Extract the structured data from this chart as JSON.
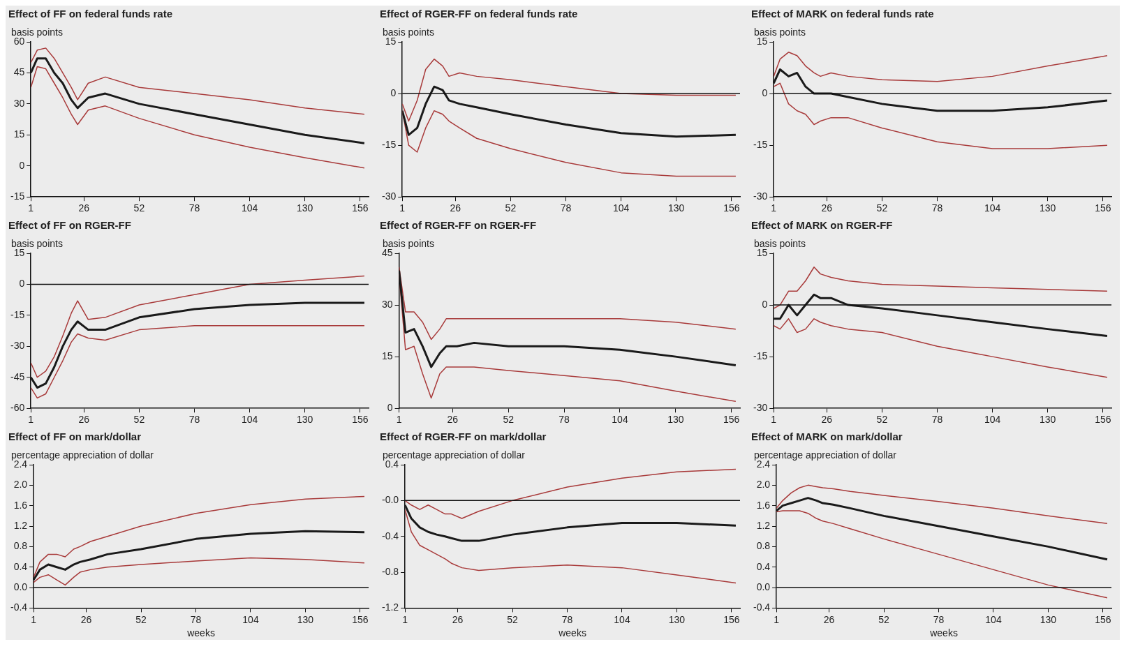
{
  "chart_data": [
    {
      "type": "line",
      "title": "Effect of FF on federal funds rate",
      "ylabel": "basis points",
      "marker": "none",
      "x": [
        1,
        4,
        8,
        12,
        16,
        20,
        23,
        28,
        36,
        52,
        78,
        104,
        130,
        158
      ],
      "xlim": [
        1,
        160
      ],
      "xticks": [
        1,
        26,
        52,
        78,
        104,
        130,
        156
      ],
      "ylim": [
        -15,
        60
      ],
      "yticks": [
        -15,
        0,
        15,
        30,
        45,
        60
      ],
      "series": [
        {
          "color": "#1a1a1a",
          "values": [
            45,
            52,
            52,
            45,
            40,
            32,
            28,
            33,
            35,
            30,
            25,
            20,
            15,
            11
          ]
        },
        {
          "color": "#a83a3a",
          "values": [
            50,
            56,
            57,
            52,
            45,
            38,
            32,
            40,
            43,
            38,
            35,
            32,
            28,
            25
          ]
        },
        {
          "color": "#a83a3a",
          "values": [
            38,
            48,
            47,
            40,
            33,
            25,
            20,
            27,
            29,
            23,
            15,
            9,
            4,
            -1
          ]
        }
      ]
    },
    {
      "type": "line",
      "title": "Effect of RGER-FF on federal funds rate",
      "ylabel": "basis points",
      "marker": "none",
      "x": [
        1,
        4,
        8,
        12,
        16,
        20,
        23,
        28,
        36,
        52,
        78,
        104,
        130,
        158
      ],
      "xlim": [
        1,
        160
      ],
      "xticks": [
        1,
        26,
        52,
        78,
        104,
        130,
        156
      ],
      "ylim": [
        -30,
        15
      ],
      "yticks": [
        -30,
        -15,
        0,
        15
      ],
      "ref_lines": [
        {
          "axis": "y",
          "value": 0
        }
      ],
      "series": [
        {
          "color": "#1a1a1a",
          "values": [
            -5,
            -12,
            -10,
            -3,
            2,
            1,
            -2,
            -3,
            -4,
            -6,
            -9,
            -11.5,
            -12.5,
            -12
          ]
        },
        {
          "color": "#a83a3a",
          "values": [
            -3,
            -8,
            -2,
            7,
            10,
            8,
            5,
            6,
            5,
            4,
            2,
            0,
            -0.5,
            -0.5
          ]
        },
        {
          "color": "#a83a3a",
          "values": [
            -5,
            -15,
            -17,
            -10,
            -5,
            -6,
            -8,
            -10,
            -13,
            -16,
            -20,
            -23,
            -24,
            -24
          ]
        }
      ]
    },
    {
      "type": "line",
      "title": "Effect of MARK on federal funds rate",
      "ylabel": "basis points",
      "marker": "none",
      "x": [
        1,
        4,
        8,
        12,
        16,
        20,
        23,
        28,
        36,
        52,
        78,
        104,
        130,
        158
      ],
      "xlim": [
        1,
        160
      ],
      "xticks": [
        1,
        26,
        52,
        78,
        104,
        130,
        156
      ],
      "ylim": [
        -30,
        15
      ],
      "yticks": [
        -30,
        -15,
        0,
        15
      ],
      "ref_lines": [
        {
          "axis": "y",
          "value": 0
        }
      ],
      "series": [
        {
          "color": "#1a1a1a",
          "values": [
            3,
            7,
            5,
            6,
            2,
            0,
            0,
            0,
            -1,
            -3,
            -5,
            -5,
            -4,
            -2
          ]
        },
        {
          "color": "#a83a3a",
          "values": [
            5,
            10,
            12,
            11,
            8,
            6,
            5,
            6,
            5,
            4,
            3.5,
            5,
            8,
            11
          ]
        },
        {
          "color": "#a83a3a",
          "values": [
            2,
            3,
            -3,
            -5,
            -6,
            -9,
            -8,
            -7,
            -7,
            -10,
            -14,
            -16,
            -16,
            -15
          ]
        }
      ]
    },
    {
      "type": "line",
      "title": "Effect of FF on RGER-FF",
      "ylabel": "basis points",
      "marker": "none",
      "x": [
        1,
        4,
        8,
        12,
        16,
        20,
        23,
        28,
        36,
        52,
        78,
        104,
        130,
        158
      ],
      "xlim": [
        1,
        160
      ],
      "xticks": [
        1,
        26,
        52,
        78,
        104,
        130,
        156
      ],
      "ylim": [
        -60,
        15
      ],
      "yticks": [
        -60,
        -45,
        -30,
        -15,
        0,
        15
      ],
      "ref_lines": [
        {
          "axis": "y",
          "value": 0
        }
      ],
      "series": [
        {
          "color": "#1a1a1a",
          "values": [
            -45,
            -50,
            -48,
            -40,
            -30,
            -22,
            -18,
            -22,
            -22,
            -16,
            -12,
            -10,
            -9,
            -9
          ]
        },
        {
          "color": "#a83a3a",
          "values": [
            -38,
            -45,
            -42,
            -35,
            -25,
            -14,
            -8,
            -17,
            -16,
            -10,
            -5,
            0,
            2,
            4
          ]
        },
        {
          "color": "#a83a3a",
          "values": [
            -50,
            -55,
            -53,
            -45,
            -37,
            -28,
            -24,
            -26,
            -27,
            -22,
            -20,
            -20,
            -20,
            -20
          ]
        }
      ]
    },
    {
      "type": "line",
      "title": "Effect of RGER-FF on RGER-FF",
      "ylabel": "basis points",
      "marker": "none",
      "x": [
        1,
        4,
        8,
        12,
        16,
        20,
        23,
        28,
        36,
        52,
        78,
        104,
        130,
        158
      ],
      "xlim": [
        1,
        160
      ],
      "xticks": [
        1,
        26,
        52,
        78,
        104,
        130,
        156
      ],
      "ylim": [
        0,
        45
      ],
      "yticks": [
        0,
        15,
        30,
        45
      ],
      "series": [
        {
          "color": "#1a1a1a",
          "values": [
            40,
            22,
            23,
            18,
            12,
            16,
            18,
            18,
            19,
            18,
            18,
            17,
            15,
            12.5
          ]
        },
        {
          "color": "#a83a3a",
          "values": [
            41,
            28,
            28,
            25,
            20,
            23,
            26,
            26,
            26,
            26,
            26,
            26,
            25,
            23
          ]
        },
        {
          "color": "#a83a3a",
          "values": [
            39,
            17,
            18,
            10,
            3,
            10,
            12,
            12,
            12,
            11,
            9.5,
            8,
            5,
            2
          ]
        }
      ]
    },
    {
      "type": "line",
      "title": "Effect of MARK on RGER-FF",
      "ylabel": "basis points",
      "marker": "none",
      "x": [
        1,
        4,
        8,
        12,
        16,
        20,
        23,
        28,
        36,
        52,
        78,
        104,
        130,
        158
      ],
      "xlim": [
        1,
        160
      ],
      "xticks": [
        1,
        26,
        52,
        78,
        104,
        130,
        156
      ],
      "ylim": [
        -30,
        15
      ],
      "yticks": [
        -30,
        -15,
        0,
        15
      ],
      "ref_lines": [
        {
          "axis": "y",
          "value": 0
        }
      ],
      "series": [
        {
          "color": "#1a1a1a",
          "values": [
            -4,
            -4,
            0,
            -3,
            0,
            3,
            2,
            2,
            0,
            -1,
            -3,
            -5,
            -7,
            -9
          ]
        },
        {
          "color": "#a83a3a",
          "values": [
            -1,
            0,
            4,
            4,
            7,
            11,
            9,
            8,
            7,
            6,
            5.5,
            5,
            4.5,
            4
          ]
        },
        {
          "color": "#a83a3a",
          "values": [
            -6,
            -7,
            -4,
            -8,
            -7,
            -4,
            -5,
            -6,
            -7,
            -8,
            -12,
            -15,
            -18,
            -21
          ]
        }
      ]
    },
    {
      "type": "line",
      "title": "Effect of FF on mark/dollar",
      "ylabel": "percentage appreciation of dollar",
      "xlabel": "weeks",
      "marker": "none",
      "x": [
        1,
        4,
        8,
        12,
        16,
        20,
        23,
        28,
        36,
        52,
        78,
        104,
        130,
        158
      ],
      "xlim": [
        1,
        160
      ],
      "xticks": [
        1,
        26,
        52,
        78,
        104,
        130,
        156
      ],
      "ylim": [
        -0.4,
        2.4
      ],
      "yticks": [
        -0.4,
        {
          "value": 0,
          "label": "0.0"
        },
        0.4,
        0.8,
        {
          "value": 1.2,
          "label": "1.2"
        },
        1.6,
        {
          "value": 2,
          "label": "2.0"
        },
        2.4
      ],
      "ref_lines": [
        {
          "axis": "y",
          "value": 0
        }
      ],
      "series": [
        {
          "color": "#1a1a1a",
          "values": [
            0.15,
            0.35,
            0.45,
            0.4,
            0.35,
            0.45,
            0.5,
            0.55,
            0.65,
            0.75,
            0.95,
            1.05,
            1.1,
            1.08
          ]
        },
        {
          "color": "#a83a3a",
          "values": [
            0.2,
            0.5,
            0.65,
            0.65,
            0.6,
            0.75,
            0.8,
            0.9,
            1.0,
            1.2,
            1.45,
            1.62,
            1.73,
            1.78
          ]
        },
        {
          "color": "#a83a3a",
          "values": [
            0.1,
            0.2,
            0.25,
            0.15,
            0.05,
            0.2,
            0.3,
            0.35,
            0.4,
            0.45,
            0.52,
            0.58,
            0.55,
            0.48
          ]
        }
      ]
    },
    {
      "type": "line",
      "title": "Effect of RGER-FF on mark/dollar",
      "ylabel": "percentage appreciation of dollar",
      "xlabel": "weeks",
      "marker": "none",
      "x": [
        1,
        4,
        8,
        12,
        16,
        20,
        23,
        28,
        36,
        52,
        78,
        104,
        130,
        158
      ],
      "xlim": [
        1,
        160
      ],
      "xticks": [
        1,
        26,
        52,
        78,
        104,
        130,
        156
      ],
      "ylim": [
        -1.2,
        0.4
      ],
      "yticks": [
        -1.2,
        -0.8,
        -0.4,
        {
          "value": 0,
          "label": "-0.0"
        },
        0.4
      ],
      "ref_lines": [
        {
          "axis": "y",
          "value": 0
        }
      ],
      "series": [
        {
          "color": "#1a1a1a",
          "values": [
            -0.05,
            -0.2,
            -0.3,
            -0.35,
            -0.38,
            -0.4,
            -0.42,
            -0.45,
            -0.45,
            -0.38,
            -0.3,
            -0.25,
            -0.25,
            -0.28
          ]
        },
        {
          "color": "#a83a3a",
          "values": [
            0,
            -0.05,
            -0.1,
            -0.05,
            -0.1,
            -0.15,
            -0.15,
            -0.2,
            -0.12,
            0,
            0.15,
            0.25,
            0.32,
            0.35
          ]
        },
        {
          "color": "#a83a3a",
          "values": [
            -0.1,
            -0.35,
            -0.5,
            -0.55,
            -0.6,
            -0.65,
            -0.7,
            -0.75,
            -0.78,
            -0.75,
            -0.72,
            -0.75,
            -0.83,
            -0.92
          ]
        }
      ]
    },
    {
      "type": "line",
      "title": "Effect of MARK on mark/dollar",
      "ylabel": "percentage appreciation of dollar",
      "xlabel": "weeks",
      "marker": "none",
      "x": [
        1,
        4,
        8,
        12,
        16,
        20,
        23,
        28,
        36,
        52,
        78,
        104,
        130,
        158
      ],
      "xlim": [
        1,
        160
      ],
      "xticks": [
        1,
        26,
        52,
        78,
        104,
        130,
        156
      ],
      "ylim": [
        -0.4,
        2.4
      ],
      "yticks": [
        -0.4,
        {
          "value": 0,
          "label": "0.0"
        },
        0.4,
        0.8,
        {
          "value": 1.2,
          "label": "1.2"
        },
        1.6,
        {
          "value": 2,
          "label": "2.0"
        },
        2.4
      ],
      "ref_lines": [
        {
          "axis": "y",
          "value": 0
        }
      ],
      "series": [
        {
          "color": "#1a1a1a",
          "values": [
            1.5,
            1.6,
            1.65,
            1.7,
            1.75,
            1.7,
            1.65,
            1.62,
            1.55,
            1.4,
            1.2,
            1.0,
            0.8,
            0.55
          ]
        },
        {
          "color": "#a83a3a",
          "values": [
            1.55,
            1.7,
            1.85,
            1.95,
            2.0,
            1.97,
            1.95,
            1.93,
            1.88,
            1.8,
            1.68,
            1.55,
            1.4,
            1.25
          ]
        },
        {
          "color": "#a83a3a",
          "values": [
            1.48,
            1.5,
            1.5,
            1.5,
            1.45,
            1.35,
            1.3,
            1.25,
            1.15,
            0.95,
            0.65,
            0.35,
            0.05,
            -0.2
          ]
        }
      ]
    }
  ]
}
